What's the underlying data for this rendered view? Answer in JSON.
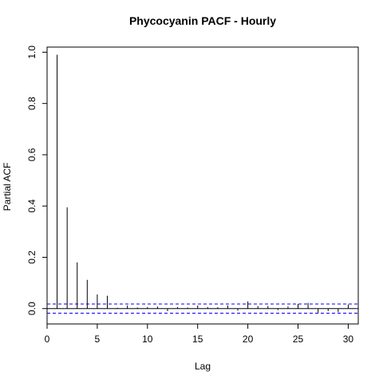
{
  "chart_data": {
    "type": "bar",
    "title": "Phycocyanin PACF - Hourly",
    "xlabel": "Lag",
    "ylabel": "Partial ACF",
    "xlim": [
      0,
      31
    ],
    "ylim": [
      -0.06,
      1.02
    ],
    "x_ticks": [
      0,
      5,
      10,
      15,
      20,
      25,
      30
    ],
    "x_tick_labels": [
      "0",
      "5",
      "10",
      "15",
      "20",
      "25",
      "30"
    ],
    "y_ticks": [
      0.0,
      0.2,
      0.4,
      0.6,
      0.8,
      1.0
    ],
    "y_tick_labels": [
      "0.0",
      "0.2",
      "0.4",
      "0.6",
      "0.8",
      "1.0"
    ],
    "confidence_bound": 0.018,
    "zero_line": 0,
    "lags": [
      1,
      2,
      3,
      4,
      5,
      6,
      7,
      8,
      9,
      10,
      11,
      12,
      13,
      14,
      15,
      16,
      17,
      18,
      19,
      20,
      21,
      22,
      23,
      24,
      25,
      26,
      27,
      28,
      29,
      30
    ],
    "values": [
      0.99,
      0.395,
      0.18,
      0.112,
      0.055,
      0.05,
      0.003,
      0.012,
      0.004,
      0.006,
      0.008,
      -0.01,
      0.006,
      0.004,
      0.012,
      0.006,
      0.005,
      0.012,
      -0.008,
      0.028,
      0.01,
      0.01,
      -0.006,
      0.008,
      0.018,
      0.022,
      -0.016,
      -0.01,
      -0.014,
      0.016
    ],
    "colors": {
      "bars": "#000000",
      "ci_lines": "#0000ff",
      "frame": "#000000"
    }
  }
}
